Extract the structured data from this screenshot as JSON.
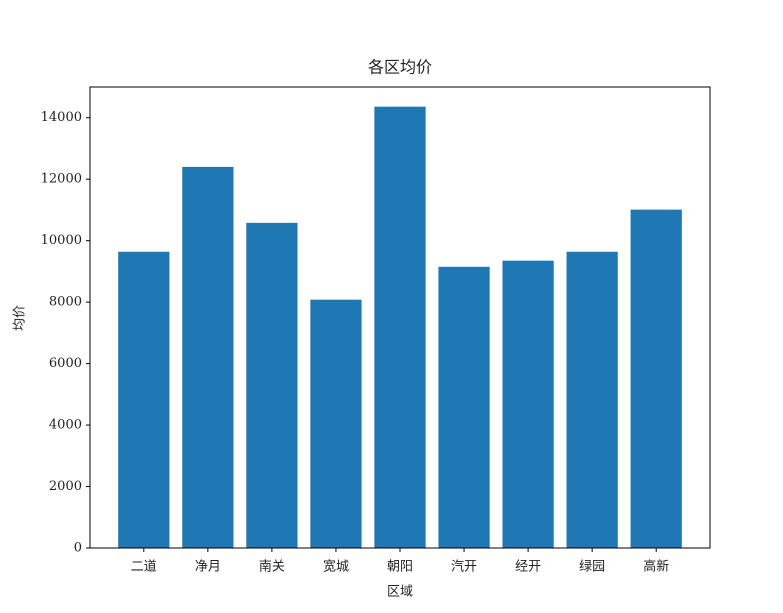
{
  "chart_data": {
    "type": "bar",
    "title": "各区均价",
    "x_label": "区域",
    "y_label": "均价",
    "categories": [
      "二道",
      "净月",
      "南关",
      "宽城",
      "朝阳",
      "汽开",
      "经开",
      "绿园",
      "高新"
    ],
    "values": [
      9640,
      12400,
      10580,
      8080,
      14360,
      9150,
      9350,
      9640,
      11010
    ],
    "color": "#1f77b4",
    "ylim": [
      0,
      15000
    ],
    "yticks": [
      0,
      2000,
      4000,
      6000,
      8000,
      10000,
      12000,
      14000
    ],
    "grid": false
  }
}
